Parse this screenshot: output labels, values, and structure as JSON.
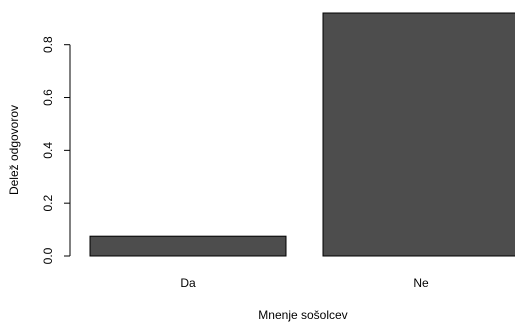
{
  "chart_data": {
    "type": "bar",
    "categories": [
      "Da",
      "Ne"
    ],
    "values": [
      0.075,
      0.92
    ],
    "xlabel": "Mnenje sošolcev",
    "ylabel": "Delež odgovorov",
    "ylim": [
      0,
      0.92
    ],
    "yticks": [
      "0.0",
      "0.2",
      "0.4",
      "0.6",
      "0.8"
    ],
    "ytick_values": [
      0,
      0.2,
      0.4,
      0.6,
      0.8
    ],
    "bar_color": "#4d4d4d",
    "bar_outline": "#000000",
    "grid": false,
    "legend": "none"
  }
}
